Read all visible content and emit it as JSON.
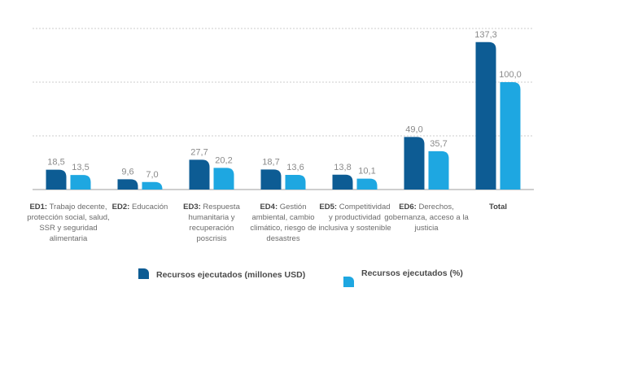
{
  "colors": {
    "series1": "#0d5c94",
    "series2": "#1ea7e1",
    "grid": "#bdbdbd",
    "axis": "#9e9e9e"
  },
  "legend": [
    {
      "label": "Recursos ejecutados (millones USD)"
    },
    {
      "label": "Recursos ejecutados (%)"
    }
  ],
  "chart_data": {
    "type": "bar",
    "title": "",
    "xlabel": "",
    "ylabel": "",
    "ylim": [
      0,
      150
    ],
    "grid": true,
    "categories": [
      {
        "code": "ED1:",
        "lines": [
          " Trabajo decente,",
          "protección social, salud,",
          "SSR y seguridad",
          "alimentaria"
        ]
      },
      {
        "code": "ED2:",
        "lines": [
          " Educación"
        ]
      },
      {
        "code": "ED3:",
        "lines": [
          " Respuesta",
          "humanitaria y",
          "recuperación",
          "poscrisis"
        ]
      },
      {
        "code": "ED4:",
        "lines": [
          " Gestión",
          "ambiental, cambio",
          "climático, riesgo de",
          "desastres"
        ]
      },
      {
        "code": "ED5:",
        "lines": [
          " Competitividad",
          "y productividad",
          "inclusiva y sostenible"
        ]
      },
      {
        "code": "ED6:",
        "lines": [
          " Derechos,",
          "gobernanza, acceso a la",
          "justicia"
        ]
      },
      {
        "code": "Total",
        "lines": [
          ""
        ]
      }
    ],
    "series": [
      {
        "name": "Recursos ejecutados (millones USD)",
        "values": [
          18.5,
          9.6,
          27.7,
          18.7,
          13.8,
          49.0,
          137.3
        ],
        "labels": [
          "18,5",
          "9,6",
          "27,7",
          "18,7",
          "13,8",
          "49,0",
          "137,3"
        ]
      },
      {
        "name": "Recursos ejecutados (%)",
        "values": [
          13.5,
          7.0,
          20.2,
          13.6,
          10.1,
          35.7,
          100.0
        ],
        "labels": [
          "13,5",
          "7,0",
          "20,2",
          "13,6",
          "10,1",
          "35,7",
          "100,0"
        ]
      }
    ]
  }
}
